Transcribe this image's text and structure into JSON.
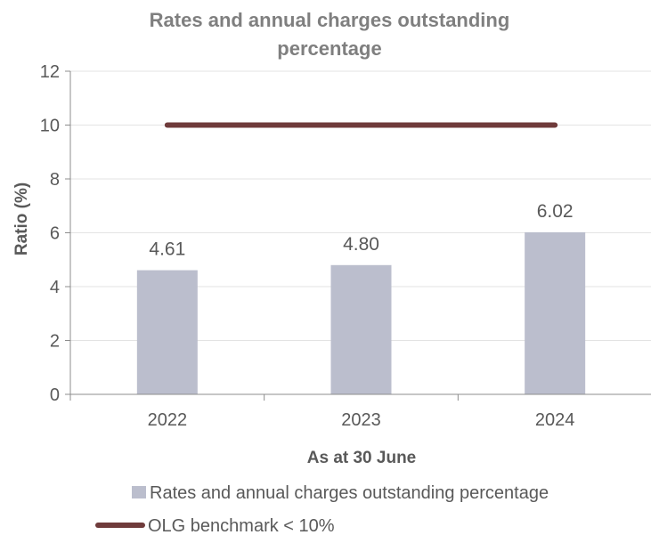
{
  "chart_data": {
    "type": "bar",
    "title_lines": [
      "Rates and annual charges outstanding",
      "percentage"
    ],
    "xlabel": "As at 30 June",
    "ylabel": "Ratio (%)",
    "categories": [
      "2022",
      "2023",
      "2024"
    ],
    "ylim": [
      0,
      12
    ],
    "yticks": [
      "0",
      "2",
      "4",
      "6",
      "8",
      "10",
      "12"
    ],
    "grid": true,
    "legend_position": "bottom",
    "series": [
      {
        "name": "Rates and annual charges outstanding percentage",
        "kind": "bar",
        "values": [
          4.61,
          4.8,
          6.02
        ],
        "labels": [
          "4.61",
          "4.80",
          "6.02"
        ],
        "color": "#bbbecd"
      },
      {
        "name": "OLG benchmark < 10%",
        "kind": "line",
        "values": [
          10,
          10,
          10
        ],
        "color": "#6f3b3b"
      }
    ]
  }
}
